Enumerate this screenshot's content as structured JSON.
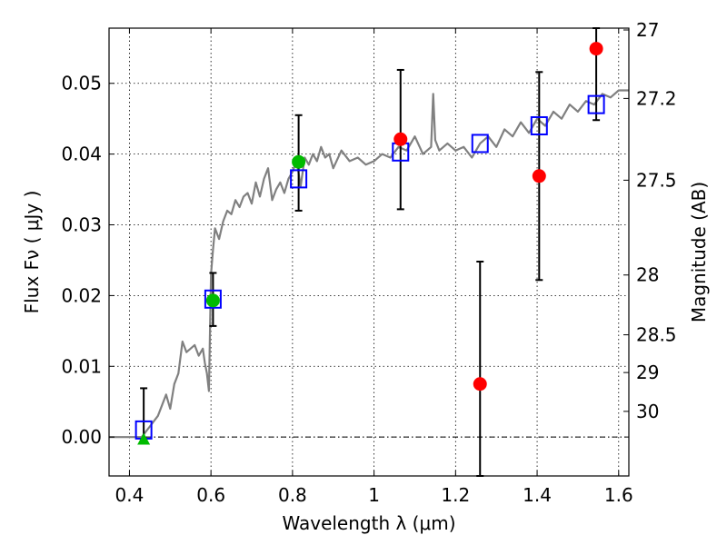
{
  "chart_data": {
    "type": "scatter",
    "xlabel": "Wavelength  λ (μm)",
    "ylabel": "Flux  Fν  ( μJy )",
    "ylabel_right": "Magnitude (AB)",
    "xlim": [
      0.35,
      1.625
    ],
    "ylim": [
      -0.0055,
      0.0578
    ],
    "x_ticks": [
      0.4,
      0.6,
      0.8,
      1.0,
      1.2,
      1.4,
      1.6
    ],
    "x_tick_labels": [
      "0.4",
      "0.6",
      "0.8",
      "1",
      "1.2",
      "1.4",
      "1.6"
    ],
    "y_ticks": [
      0.0,
      0.01,
      0.02,
      0.03,
      0.04,
      0.05
    ],
    "y_tick_labels": [
      "0.00",
      "0.01",
      "0.02",
      "0.03",
      "0.04",
      "0.05"
    ],
    "right_ticks": [
      {
        "label": "27",
        "mag": 27
      },
      {
        "label": "27.2",
        "mag": 27.2
      },
      {
        "label": "27.5",
        "mag": 27.5
      },
      {
        "label": "28",
        "mag": 28
      },
      {
        "label": "28.5",
        "mag": 28.5
      },
      {
        "label": "29",
        "mag": 29
      },
      {
        "label": "30",
        "mag": 30
      }
    ],
    "grid": true,
    "colors": {
      "template": "#808080",
      "model": "#0000ff",
      "measured": "#ff0000",
      "optical": "#00bb00",
      "errorbar": "#000000"
    },
    "template_spectrum": {
      "x": [
        0.35,
        0.4,
        0.43,
        0.45,
        0.47,
        0.49,
        0.5,
        0.51,
        0.52,
        0.53,
        0.54,
        0.55,
        0.56,
        0.57,
        0.58,
        0.585,
        0.59,
        0.595,
        0.6,
        0.605,
        0.61,
        0.62,
        0.63,
        0.64,
        0.65,
        0.66,
        0.67,
        0.68,
        0.69,
        0.7,
        0.71,
        0.72,
        0.73,
        0.74,
        0.75,
        0.76,
        0.77,
        0.78,
        0.79,
        0.8,
        0.81,
        0.82,
        0.83,
        0.84,
        0.85,
        0.86,
        0.87,
        0.88,
        0.89,
        0.9,
        0.92,
        0.94,
        0.96,
        0.98,
        1.0,
        1.02,
        1.04,
        1.06,
        1.08,
        1.1,
        1.12,
        1.14,
        1.145,
        1.15,
        1.16,
        1.18,
        1.2,
        1.22,
        1.24,
        1.26,
        1.28,
        1.3,
        1.32,
        1.34,
        1.36,
        1.38,
        1.4,
        1.42,
        1.44,
        1.46,
        1.48,
        1.5,
        1.52,
        1.54,
        1.56,
        1.58,
        1.6,
        1.625
      ],
      "y": [
        0.0,
        0.0,
        0.0,
        0.0015,
        0.003,
        0.006,
        0.004,
        0.0075,
        0.009,
        0.0135,
        0.012,
        0.0125,
        0.013,
        0.0115,
        0.0125,
        0.0105,
        0.009,
        0.0065,
        0.023,
        0.0265,
        0.0295,
        0.028,
        0.0305,
        0.032,
        0.0315,
        0.0335,
        0.0325,
        0.034,
        0.0345,
        0.033,
        0.036,
        0.034,
        0.0365,
        0.038,
        0.0335,
        0.035,
        0.036,
        0.0345,
        0.0365,
        0.0375,
        0.039,
        0.0355,
        0.0395,
        0.0385,
        0.04,
        0.039,
        0.041,
        0.0395,
        0.04,
        0.038,
        0.0405,
        0.039,
        0.0395,
        0.0385,
        0.039,
        0.04,
        0.0395,
        0.041,
        0.0405,
        0.0425,
        0.04,
        0.041,
        0.0485,
        0.042,
        0.0405,
        0.0415,
        0.0405,
        0.041,
        0.0395,
        0.0415,
        0.0425,
        0.041,
        0.0435,
        0.0425,
        0.0445,
        0.043,
        0.045,
        0.044,
        0.046,
        0.045,
        0.047,
        0.046,
        0.0475,
        0.047,
        0.0485,
        0.048,
        0.049,
        0.049
      ]
    },
    "model_points": {
      "x": [
        0.435,
        0.605,
        0.815,
        1.065,
        1.26,
        1.405,
        1.545
      ],
      "y": [
        0.001,
        0.0195,
        0.0365,
        0.0403,
        0.0415,
        0.044,
        0.047
      ]
    },
    "measured_points": {
      "x": [
        1.065,
        1.26,
        1.405,
        1.545
      ],
      "y": [
        0.0421,
        0.0075,
        0.0369,
        0.0549
      ],
      "yerr_low": [
        0.0322,
        -0.0055,
        0.0222,
        0.0448
      ],
      "yerr_high": [
        0.0519,
        0.0248,
        0.0516,
        0.0578
      ]
    },
    "optical_points": {
      "x": [
        0.605,
        0.815
      ],
      "y": [
        0.0193,
        0.0389
      ],
      "yerr_low": [
        0.0157,
        0.032
      ],
      "yerr_high": [
        0.0232,
        0.0455
      ]
    },
    "optical_upper_limit": {
      "x": [
        0.435
      ],
      "y": [
        -0.0003
      ],
      "yerr_low": [
        -0.0003
      ],
      "yerr_high": [
        0.0069
      ]
    },
    "reference_line_y": 0.0
  }
}
